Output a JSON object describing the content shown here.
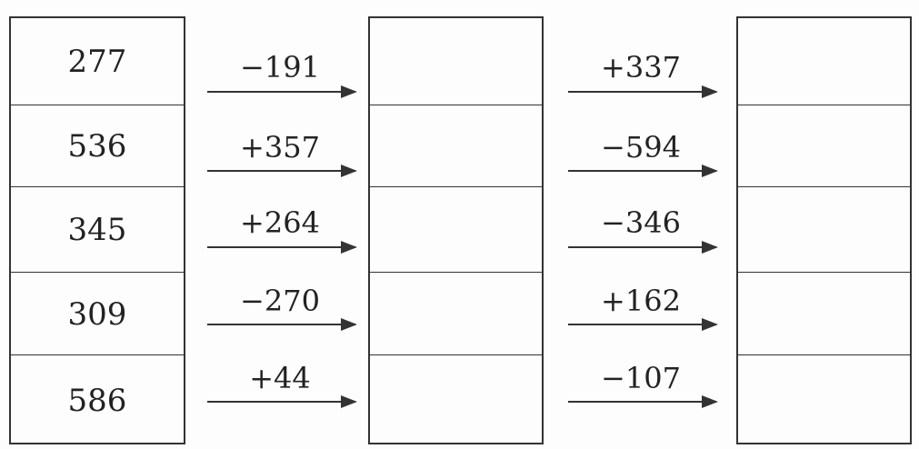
{
  "start_values": [
    "277",
    "536",
    "345",
    "309",
    "586"
  ],
  "first_ops": [
    "−191",
    "+357",
    "+264",
    "−270",
    "+44"
  ],
  "second_ops": [
    "+337",
    "−594",
    "−346",
    "+162",
    "−107"
  ],
  "middle_values": [
    "",
    "",
    "",
    "",
    ""
  ],
  "end_values": [
    "",
    "",
    "",
    "",
    ""
  ]
}
